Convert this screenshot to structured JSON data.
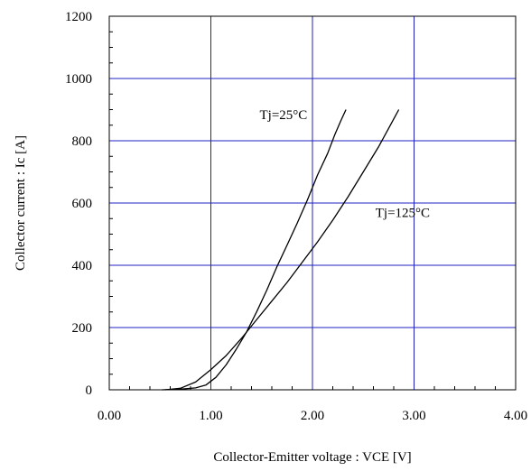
{
  "chart_data": {
    "type": "line",
    "xlabel": "Collector-Emitter voltage : VCE [V]",
    "ylabel": "Collector current : Ic [A]",
    "xlim": [
      0,
      4
    ],
    "ylim": [
      0,
      1200
    ],
    "x_ticks": [
      "0.00",
      "1.00",
      "2.00",
      "3.00",
      "4.00"
    ],
    "y_ticks": [
      "0",
      "200",
      "400",
      "600",
      "800",
      "1000",
      "1200"
    ],
    "grid": true,
    "colors": {
      "grid": "#2020c0",
      "line": "#000000",
      "axis": "#000000"
    },
    "series": [
      {
        "name": "Tj=25°C",
        "x": [
          0.52,
          0.7,
          0.85,
          0.95,
          1.05,
          1.15,
          1.25,
          1.35,
          1.45,
          1.55,
          1.65,
          1.75,
          1.85,
          1.95,
          2.05,
          2.15,
          2.22,
          2.28,
          2.33
        ],
        "y": [
          0,
          2,
          6,
          15,
          40,
          80,
          130,
          185,
          250,
          320,
          395,
          465,
          535,
          610,
          690,
          760,
          820,
          865,
          900
        ]
      },
      {
        "name": "Tj=125°C",
        "x": [
          0.55,
          0.7,
          0.85,
          1.0,
          1.15,
          1.3,
          1.45,
          1.6,
          1.75,
          1.9,
          2.05,
          2.2,
          2.35,
          2.5,
          2.65,
          2.75,
          2.85
        ],
        "y": [
          0,
          5,
          25,
          65,
          110,
          165,
          225,
          285,
          345,
          410,
          475,
          545,
          620,
          700,
          780,
          840,
          900
        ]
      }
    ],
    "annotations": [
      {
        "text": "Tj=25°C",
        "x": 1.48,
        "y": 870
      },
      {
        "text": "Tj=125°C",
        "x": 2.62,
        "y": 555
      }
    ]
  }
}
